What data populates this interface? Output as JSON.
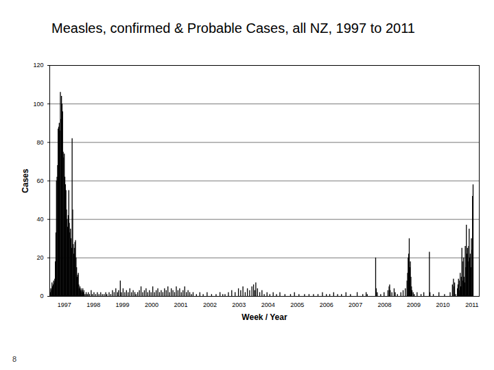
{
  "chart_data": {
    "type": "bar",
    "title": "Measles, confirmed & Probable Cases, all NZ, 1997 to 2011",
    "x_label": "Week / Year",
    "y_label": "Cases",
    "color": "#000000",
    "grid": true,
    "xlim": [
      1997,
      2011.75
    ],
    "xticks": [
      {
        "value": 1997.5,
        "label": "1997"
      },
      {
        "value": 1998.5,
        "label": "1998"
      },
      {
        "value": 1999.5,
        "label": "1999"
      },
      {
        "value": 2000.5,
        "label": "2000"
      },
      {
        "value": 2001.5,
        "label": "2001"
      },
      {
        "value": 2002.5,
        "label": "2002"
      },
      {
        "value": 2003.5,
        "label": "2003"
      },
      {
        "value": 2004.5,
        "label": "2004"
      },
      {
        "value": 2005.5,
        "label": "2005"
      },
      {
        "value": 2006.5,
        "label": "2006"
      },
      {
        "value": 2007.5,
        "label": "2007"
      },
      {
        "value": 2008.5,
        "label": "2008"
      },
      {
        "value": 2009.5,
        "label": "2009"
      },
      {
        "value": 2010.5,
        "label": "2010"
      },
      {
        "value": 2011.5,
        "label": "2011"
      }
    ],
    "ylim": [
      0,
      120
    ],
    "yticks": [
      0,
      20,
      40,
      60,
      80,
      100,
      120
    ],
    "x": [
      1997.0,
      1997.019,
      1997.038,
      1997.058,
      1997.077,
      1997.096,
      1997.115,
      1997.135,
      1997.154,
      1997.173,
      1997.192,
      1997.212,
      1997.231,
      1997.25,
      1997.269,
      1997.288,
      1997.308,
      1997.327,
      1997.346,
      1997.365,
      1997.385,
      1997.404,
      1997.423,
      1997.442,
      1997.462,
      1997.481,
      1997.5,
      1997.519,
      1997.538,
      1997.558,
      1997.577,
      1997.596,
      1997.615,
      1997.635,
      1997.654,
      1997.673,
      1997.692,
      1997.712,
      1997.731,
      1997.75,
      1997.769,
      1997.788,
      1997.808,
      1997.827,
      1997.846,
      1997.865,
      1997.885,
      1997.904,
      1997.923,
      1997.942,
      1997.962,
      1997.981,
      1998.0,
      1998.019,
      1998.038,
      1998.058,
      1998.077,
      1998.096,
      1998.115,
      1998.135,
      1998.154,
      1998.173,
      1998.212,
      1998.25,
      1998.288,
      1998.327,
      1998.365,
      1998.423,
      1998.462,
      1998.519,
      1998.577,
      1998.635,
      1998.692,
      1998.75,
      1998.808,
      1998.865,
      1998.923,
      1998.962,
      1999.038,
      1999.096,
      1999.154,
      1999.212,
      1999.269,
      1999.327,
      1999.365,
      1999.423,
      1999.462,
      1999.519,
      1999.577,
      1999.635,
      1999.692,
      1999.75,
      1999.808,
      1999.865,
      1999.923,
      1999.962,
      2000.019,
      2000.077,
      2000.135,
      2000.192,
      2000.25,
      2000.308,
      2000.365,
      2000.423,
      2000.481,
      2000.538,
      2000.596,
      2000.654,
      2000.712,
      2000.769,
      2000.827,
      2000.885,
      2000.942,
      2001.0,
      2001.058,
      2001.115,
      2001.173,
      2001.231,
      2001.288,
      2001.346,
      2001.404,
      2001.462,
      2001.519,
      2001.577,
      2001.635,
      2001.692,
      2001.75,
      2001.808,
      2001.865,
      2001.923,
      2002.038,
      2002.154,
      2002.269,
      2002.404,
      2002.558,
      2002.712,
      2002.846,
      2002.942,
      2003.019,
      2003.135,
      2003.25,
      2003.365,
      2003.481,
      2003.558,
      2003.635,
      2003.712,
      2003.788,
      2003.865,
      2003.942,
      2004.0,
      2004.038,
      2004.077,
      2004.135,
      2004.212,
      2004.288,
      2004.365,
      2004.462,
      2004.558,
      2004.673,
      2004.788,
      2004.904,
      2005.077,
      2005.269,
      2005.404,
      2005.558,
      2005.75,
      2005.904,
      2006.058,
      2006.212,
      2006.365,
      2006.5,
      2006.615,
      2006.75,
      2006.885,
      2007.019,
      2007.173,
      2007.327,
      2007.558,
      2007.75,
      2007.865,
      2007.904,
      2008.192,
      2008.212,
      2008.25,
      2008.365,
      2008.481,
      2008.615,
      2008.654,
      2008.673,
      2008.692,
      2008.75,
      2008.827,
      2008.865,
      2008.942,
      2009.058,
      2009.135,
      2009.212,
      2009.269,
      2009.288,
      2009.308,
      2009.327,
      2009.346,
      2009.365,
      2009.385,
      2009.404,
      2009.423,
      2009.442,
      2009.481,
      2009.519,
      2009.615,
      2009.75,
      2009.846,
      2010.038,
      2010.058,
      2010.173,
      2010.365,
      2010.558,
      2010.75,
      2010.827,
      2010.865,
      2010.885,
      2010.904,
      2010.942,
      2011.0,
      2011.019,
      2011.038,
      2011.058,
      2011.077,
      2011.096,
      2011.115,
      2011.135,
      2011.154,
      2011.173,
      2011.192,
      2011.212,
      2011.231,
      2011.25,
      2011.269,
      2011.288,
      2011.308,
      2011.327,
      2011.346,
      2011.365,
      2011.385,
      2011.404,
      2011.423,
      2011.442,
      2011.462,
      2011.481,
      2011.5,
      2011.519,
      2011.538
    ],
    "values": [
      3,
      2,
      4,
      3,
      7,
      5,
      6,
      8,
      7,
      9,
      18,
      33,
      60,
      62,
      68,
      87,
      88,
      90,
      86,
      106,
      92,
      104,
      100,
      96,
      75,
      72,
      74,
      62,
      58,
      55,
      45,
      40,
      36,
      42,
      55,
      38,
      33,
      35,
      30,
      25,
      82,
      45,
      27,
      22,
      25,
      28,
      29,
      20,
      15,
      10,
      11,
      12,
      6,
      4,
      5,
      3,
      4,
      2,
      3,
      4,
      2,
      3,
      1,
      2,
      1,
      2,
      1,
      3,
      1,
      2,
      1,
      2,
      1,
      2,
      1,
      1,
      2,
      1,
      2,
      1,
      3,
      2,
      4,
      2,
      3,
      8,
      2,
      4,
      2,
      3,
      2,
      4,
      2,
      3,
      2,
      1,
      2,
      3,
      5,
      2,
      3,
      4,
      2,
      3,
      2,
      5,
      2,
      3,
      4,
      2,
      3,
      2,
      4,
      3,
      5,
      2,
      4,
      3,
      2,
      5,
      3,
      4,
      2,
      3,
      5,
      2,
      3,
      2,
      1,
      2,
      1,
      2,
      1,
      2,
      1,
      1,
      2,
      1,
      1,
      2,
      3,
      2,
      4,
      3,
      5,
      2,
      4,
      3,
      5,
      6,
      3,
      7,
      4,
      2,
      3,
      1,
      2,
      1,
      2,
      1,
      2,
      1,
      1,
      2,
      1,
      1,
      1,
      1,
      1,
      2,
      1,
      1,
      2,
      1,
      1,
      2,
      1,
      2,
      1,
      2,
      1,
      20,
      4,
      2,
      1,
      2,
      3,
      5,
      6,
      3,
      2,
      4,
      2,
      1,
      2,
      3,
      4,
      8,
      12,
      20,
      22,
      30,
      15,
      18,
      10,
      5,
      3,
      2,
      1,
      2,
      1,
      2,
      23,
      2,
      1,
      2,
      1,
      2,
      6,
      9,
      5,
      7,
      1,
      4,
      6,
      9,
      3,
      8,
      12,
      5,
      10,
      25,
      18,
      8,
      20,
      10,
      7,
      26,
      15,
      37,
      22,
      25,
      18,
      26,
      35,
      20,
      22,
      15,
      30,
      24,
      52,
      58
    ]
  },
  "slide_number": 8
}
